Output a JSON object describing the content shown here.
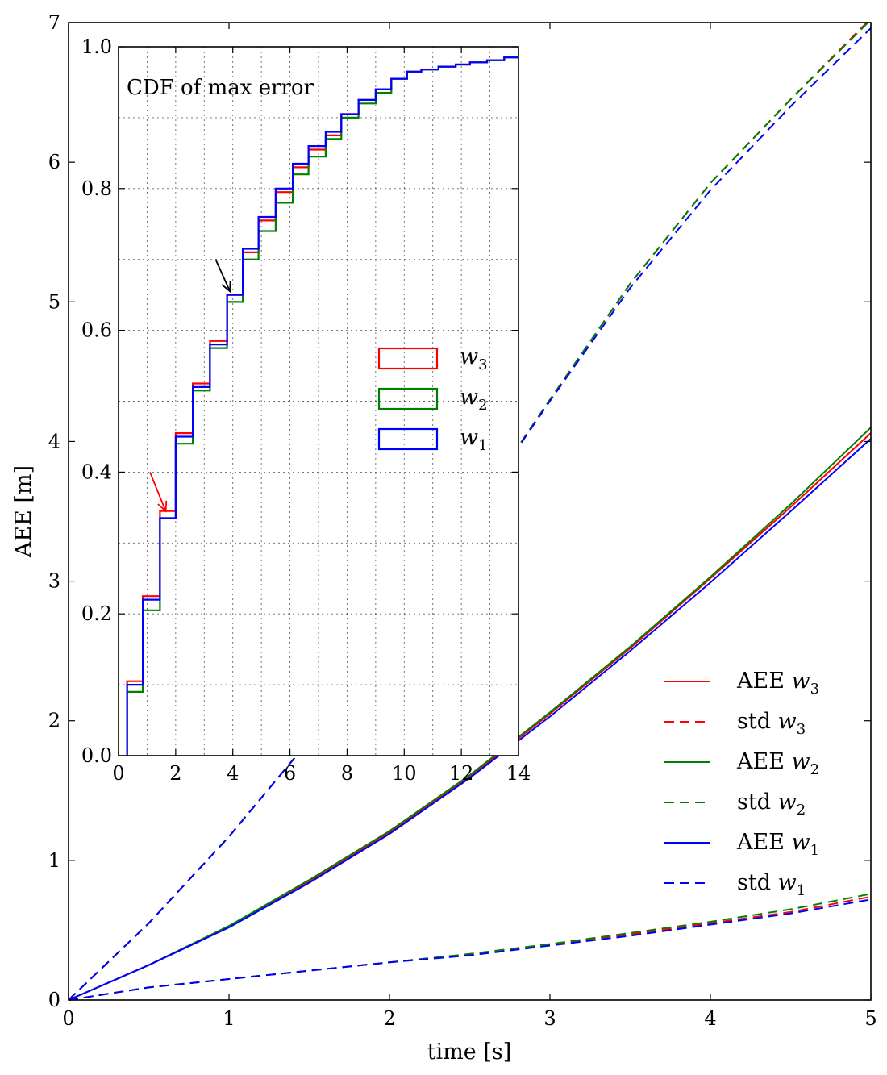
{
  "chart_data": [
    {
      "type": "line",
      "xlabel": "time [s]",
      "ylabel": "AEE [m]",
      "xlim": [
        0,
        5
      ],
      "ylim": [
        0,
        7
      ],
      "xticks": [
        "0",
        "1",
        "2",
        "3",
        "4",
        "5"
      ],
      "yticks": [
        "0",
        "1",
        "2",
        "3",
        "4",
        "5",
        "6",
        "7"
      ],
      "grid": false,
      "legend_placement": "lower-right",
      "legend": [
        {
          "label": "AEE w3",
          "prefix": "AEE",
          "var": "w",
          "sub": "3",
          "series": "aee_w3"
        },
        {
          "label": "std w3",
          "prefix": "std",
          "var": "w",
          "sub": "3",
          "series": "std_w3"
        },
        {
          "label": "AEE w2",
          "prefix": "AEE",
          "var": "w",
          "sub": "2",
          "series": "aee_w2"
        },
        {
          "label": "std w2",
          "prefix": "std",
          "var": "w",
          "sub": "2",
          "series": "std_w2"
        },
        {
          "label": "AEE w1",
          "prefix": "AEE",
          "var": "w",
          "sub": "1",
          "series": "aee_w1"
        },
        {
          "label": "std w1",
          "prefix": "std",
          "var": "w",
          "sub": "1",
          "series": "std_w1"
        }
      ],
      "series": [
        {
          "key": "aee_w3",
          "color": "#ff0000",
          "dash": false,
          "x": [
            0,
            0.5,
            1,
            1.5,
            2,
            2.5,
            3,
            3.5,
            4,
            4.5,
            5
          ],
          "y": [
            0,
            0.25,
            0.53,
            0.85,
            1.2,
            1.6,
            2.05,
            2.52,
            3.02,
            3.53,
            4.06
          ]
        },
        {
          "key": "std_w3",
          "color": "#ff0000",
          "dash": true,
          "x": [
            0,
            0.5,
            1,
            1.5,
            2,
            2.5,
            3,
            3.5,
            4,
            4.5,
            5
          ],
          "y": [
            0,
            0.09,
            0.15,
            0.21,
            0.27,
            0.33,
            0.4,
            0.47,
            0.55,
            0.63,
            0.74
          ]
        },
        {
          "key": "aee_w2",
          "color": "#008000",
          "dash": false,
          "x": [
            0,
            0.5,
            1,
            1.5,
            2,
            2.5,
            3,
            3.5,
            4,
            4.5,
            5
          ],
          "y": [
            0,
            0.25,
            0.53,
            0.86,
            1.21,
            1.61,
            2.06,
            2.53,
            3.03,
            3.55,
            4.1
          ]
        },
        {
          "key": "std_w2",
          "color": "#008000",
          "dash": true,
          "x": [
            0,
            0.5,
            1,
            1.5,
            2,
            2.5,
            3,
            3.5,
            4,
            4.5,
            5
          ],
          "y": [
            0,
            0.09,
            0.15,
            0.21,
            0.27,
            0.33,
            0.4,
            0.48,
            0.56,
            0.65,
            0.76
          ]
        },
        {
          "key": "aee_w1",
          "color": "#0000ff",
          "dash": false,
          "x": [
            0,
            0.5,
            1,
            1.5,
            2,
            2.5,
            3,
            3.5,
            4,
            4.5,
            5
          ],
          "y": [
            0,
            0.25,
            0.52,
            0.84,
            1.19,
            1.59,
            2.03,
            2.5,
            2.99,
            3.5,
            4.02
          ]
        },
        {
          "key": "std_w1",
          "color": "#0000ff",
          "dash": true,
          "x": [
            0,
            0.5,
            1,
            1.5,
            2,
            2.5,
            3,
            3.5,
            4,
            4.5,
            5
          ],
          "y": [
            0,
            0.09,
            0.15,
            0.21,
            0.27,
            0.32,
            0.39,
            0.46,
            0.54,
            0.62,
            0.72
          ]
        },
        {
          "key": "upper_w3",
          "color": "#ff0000",
          "dash": true,
          "x": [
            0,
            0.5,
            1,
            1.5,
            2,
            2.5,
            3,
            3.5,
            4,
            4.5,
            5
          ],
          "y": [
            0,
            0.55,
            1.17,
            1.86,
            2.63,
            3.45,
            4.3,
            5.13,
            5.85,
            6.45,
            7.03
          ]
        },
        {
          "key": "upper_w2",
          "color": "#008000",
          "dash": true,
          "x": [
            0,
            0.5,
            1,
            1.5,
            2,
            2.5,
            3,
            3.5,
            4,
            4.5,
            5
          ],
          "y": [
            0,
            0.55,
            1.17,
            1.86,
            2.63,
            3.45,
            4.3,
            5.13,
            5.85,
            6.45,
            7.02
          ]
        },
        {
          "key": "upper_w1",
          "color": "#0000ff",
          "dash": true,
          "x": [
            0,
            0.5,
            1,
            1.5,
            2,
            2.5,
            3,
            3.5,
            4,
            4.5,
            5
          ],
          "y": [
            0,
            0.55,
            1.17,
            1.86,
            2.63,
            3.45,
            4.29,
            5.1,
            5.8,
            6.4,
            6.96
          ]
        }
      ]
    },
    {
      "type": "line",
      "title": "CDF of max error",
      "xlim": [
        0,
        14
      ],
      "ylim": [
        0,
        1.0
      ],
      "xticks": [
        "0",
        "2",
        "4",
        "6",
        "8",
        "10",
        "12",
        "14"
      ],
      "yticks": [
        "0.0",
        "0.2",
        "0.4",
        "0.6",
        "0.8",
        "1.0"
      ],
      "grid": true,
      "step": true,
      "legend_placement": "center-right",
      "legend": [
        {
          "var": "w",
          "sub": "3",
          "color": "#ff0000"
        },
        {
          "var": "w",
          "sub": "2",
          "color": "#008000"
        },
        {
          "var": "w",
          "sub": "1",
          "color": "#0000ff"
        }
      ],
      "annotations": [
        {
          "type": "arrow",
          "color": "#000000",
          "from": [
            3.4,
            0.7
          ],
          "to": [
            3.9,
            0.655
          ]
        },
        {
          "type": "arrow",
          "color": "#ff0000",
          "from": [
            1.1,
            0.4
          ],
          "to": [
            1.65,
            0.345
          ]
        }
      ],
      "series": [
        {
          "name": "w3",
          "color": "#ff0000",
          "x": [
            0.3,
            0.3,
            0.85,
            1.45,
            2.0,
            2.6,
            3.2,
            3.8,
            4.35,
            4.9,
            5.5,
            6.1,
            6.65,
            7.25,
            7.8,
            8.4,
            9.0,
            9.55,
            10.1,
            10.6,
            11.2,
            11.8,
            12.3,
            12.9,
            13.5,
            14
          ],
          "y": [
            0.0,
            0.105,
            0.225,
            0.345,
            0.455,
            0.525,
            0.585,
            0.65,
            0.71,
            0.755,
            0.795,
            0.83,
            0.855,
            0.875,
            0.905,
            0.925,
            0.94,
            0.955,
            0.965,
            0.968,
            0.972,
            0.975,
            0.978,
            0.981,
            0.985,
            0.985
          ]
        },
        {
          "name": "w2",
          "color": "#008000",
          "x": [
            0.3,
            0.3,
            0.85,
            1.45,
            2.0,
            2.6,
            3.2,
            3.8,
            4.35,
            4.9,
            5.5,
            6.1,
            6.65,
            7.25,
            7.8,
            8.4,
            9.0,
            9.55,
            10.1,
            10.6,
            11.2,
            11.8,
            12.3,
            12.9,
            13.5,
            14
          ],
          "y": [
            0.0,
            0.09,
            0.205,
            0.335,
            0.44,
            0.515,
            0.575,
            0.64,
            0.7,
            0.74,
            0.78,
            0.82,
            0.845,
            0.87,
            0.9,
            0.92,
            0.935,
            0.955,
            0.965,
            0.968,
            0.972,
            0.975,
            0.978,
            0.981,
            0.985,
            0.985
          ]
        },
        {
          "name": "w1",
          "color": "#0000ff",
          "x": [
            0.3,
            0.3,
            0.85,
            1.45,
            2.0,
            2.6,
            3.2,
            3.8,
            4.35,
            4.9,
            5.5,
            6.1,
            6.65,
            7.25,
            7.8,
            8.4,
            9.0,
            9.55,
            10.1,
            10.6,
            11.2,
            11.8,
            12.3,
            12.9,
            13.5,
            14
          ],
          "y": [
            0.0,
            0.1,
            0.22,
            0.335,
            0.45,
            0.52,
            0.58,
            0.65,
            0.715,
            0.76,
            0.8,
            0.835,
            0.86,
            0.88,
            0.905,
            0.925,
            0.94,
            0.955,
            0.965,
            0.968,
            0.972,
            0.975,
            0.978,
            0.981,
            0.985,
            0.985
          ]
        }
      ]
    }
  ]
}
